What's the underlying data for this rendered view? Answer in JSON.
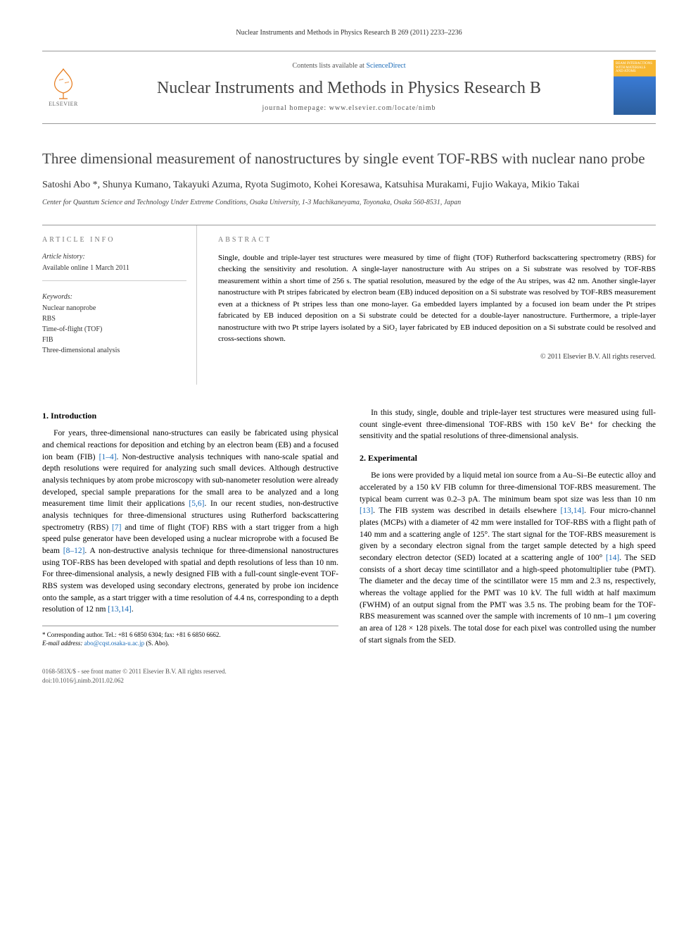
{
  "header": {
    "citation": "Nuclear Instruments and Methods in Physics Research B 269 (2011) 2233–2236"
  },
  "masthead": {
    "elsevier_label": "ELSEVIER",
    "contents_prefix": "Contents lists available at ",
    "contents_link": "ScienceDirect",
    "journal_name": "Nuclear Instruments and Methods in Physics Research B",
    "homepage_prefix": "journal homepage: ",
    "homepage_url": "www.elsevier.com/locate/nimb",
    "cover_text": "BEAM INTERACTIONS WITH MATERIALS AND ATOMS"
  },
  "article": {
    "title": "Three dimensional measurement of nanostructures by single event TOF-RBS with nuclear nano probe",
    "authors": "Satoshi Abo *, Shunya Kumano, Takayuki Azuma, Ryota Sugimoto, Kohei Koresawa, Katsuhisa Murakami, Fujio Wakaya, Mikio Takai",
    "affiliation": "Center for Quantum Science and Technology Under Extreme Conditions, Osaka University, 1-3 Machikaneyama, Toyonaka, Osaka 560-8531, Japan"
  },
  "info": {
    "article_info_label": "ARTICLE INFO",
    "history_label": "Article history:",
    "history_value": "Available online 1 March 2011",
    "keywords_label": "Keywords:",
    "keywords": [
      "Nuclear nanoprobe",
      "RBS",
      "Time-of-flight (TOF)",
      "FIB",
      "Three-dimensional analysis"
    ]
  },
  "abstract": {
    "label": "ABSTRACT",
    "text": "Single, double and triple-layer test structures were measured by time of flight (TOF) Rutherford backscattering spectrometry (RBS) for checking the sensitivity and resolution. A single-layer nanostructure with Au stripes on a Si substrate was resolved by TOF-RBS measurement within a short time of 256 s. The spatial resolution, measured by the edge of the Au stripes, was 42 nm. Another single-layer nanostructure with Pt stripes fabricated by electron beam (EB) induced deposition on a Si substrate was resolved by TOF-RBS measurement even at a thickness of Pt stripes less than one mono-layer. Ga embedded layers implanted by a focused ion beam under the Pt stripes fabricated by EB induced deposition on a Si substrate could be detected for a double-layer nanostructure. Furthermore, a triple-layer nanostructure with two Pt stripe layers isolated by a SiO₂ layer fabricated by EB induced deposition on a Si substrate could be resolved and cross-sections shown.",
    "copyright": "© 2011 Elsevier B.V. All rights reserved."
  },
  "sections": {
    "intro_heading": "1. Introduction",
    "intro_p1": "For years, three-dimensional nano-structures can easily be fabricated using physical and chemical reactions for deposition and etching by an electron beam (EB) and a focused ion beam (FIB) [1–4]. Non-destructive analysis techniques with nano-scale spatial and depth resolutions were required for analyzing such small devices. Although destructive analysis techniques by atom probe microscopy with sub-nanometer resolution were already developed, special sample preparations for the small area to be analyzed and a long measurement time limit their applications [5,6]. In our recent studies, non-destructive analysis techniques for three-dimensional structures using Rutherford backscattering spectrometry (RBS) [7] and time of flight (TOF) RBS with a start trigger from a high speed pulse generator have been developed using a nuclear microprobe with a focused Be beam [8–12]. A non-destructive analysis technique for three-dimensional nanostructures using TOF-RBS has been developed with spatial and depth resolutions of less than 10 nm. For three-dimensional analysis, a newly designed FIB with a full-count single-event TOF-RBS system was developed using secondary electrons, generated by probe ion incidence onto the sample, as a start trigger with a time resolution of 4.4 ns, corresponding to a depth resolution of 12 nm [13,14].",
    "intro_p2": "In this study, single, double and triple-layer test structures were measured using full-count single-event three-dimensional TOF-RBS with 150 keV Be⁺ for checking the sensitivity and the spatial resolutions of three-dimensional analysis.",
    "exp_heading": "2. Experimental",
    "exp_p1": "Be ions were provided by a liquid metal ion source from a Au–Si–Be eutectic alloy and accelerated by a 150 kV FIB column for three-dimensional TOF-RBS measurement. The typical beam current was 0.2–3 pA. The minimum beam spot size was less than 10 nm [13]. The FIB system was described in details elsewhere [13,14]. Four micro-channel plates (MCPs) with a diameter of 42 mm were installed for TOF-RBS with a flight path of 140 mm and a scattering angle of 125°. The start signal for the TOF-RBS measurement is given by a secondary electron signal from the target sample detected by a high speed secondary electron detector (SED) located at a scattering angle of 100° [14]. The SED consists of a short decay time scintillator and a high-speed photomultiplier tube (PMT). The diameter and the decay time of the scintillator were 15 mm and 2.3 ns, respectively, whereas the voltage applied for the PMT was 10 kV. The full width at half maximum (FWHM) of an output signal from the PMT was 3.5 ns. The probing beam for the TOF-RBS measurement was scanned over the sample with increments of 10 nm–1 µm covering an area of 128 × 128 pixels. The total dose for each pixel was controlled using the number of start signals from the SED."
  },
  "footnote": {
    "corr": "* Corresponding author. Tel.: +81 6 6850 6304; fax: +81 6 6850 6662.",
    "email_label": "E-mail address:",
    "email": "abo@cqst.osaka-u.ac.jp",
    "email_suffix": "(S. Abo)."
  },
  "footer": {
    "left1": "0168-583X/$ - see front matter © 2011 Elsevier B.V. All rights reserved.",
    "left2": "doi:10.1016/j.nimb.2011.02.062"
  },
  "colors": {
    "link": "#1a6bb8",
    "rule": "#999999",
    "text": "#333333"
  }
}
